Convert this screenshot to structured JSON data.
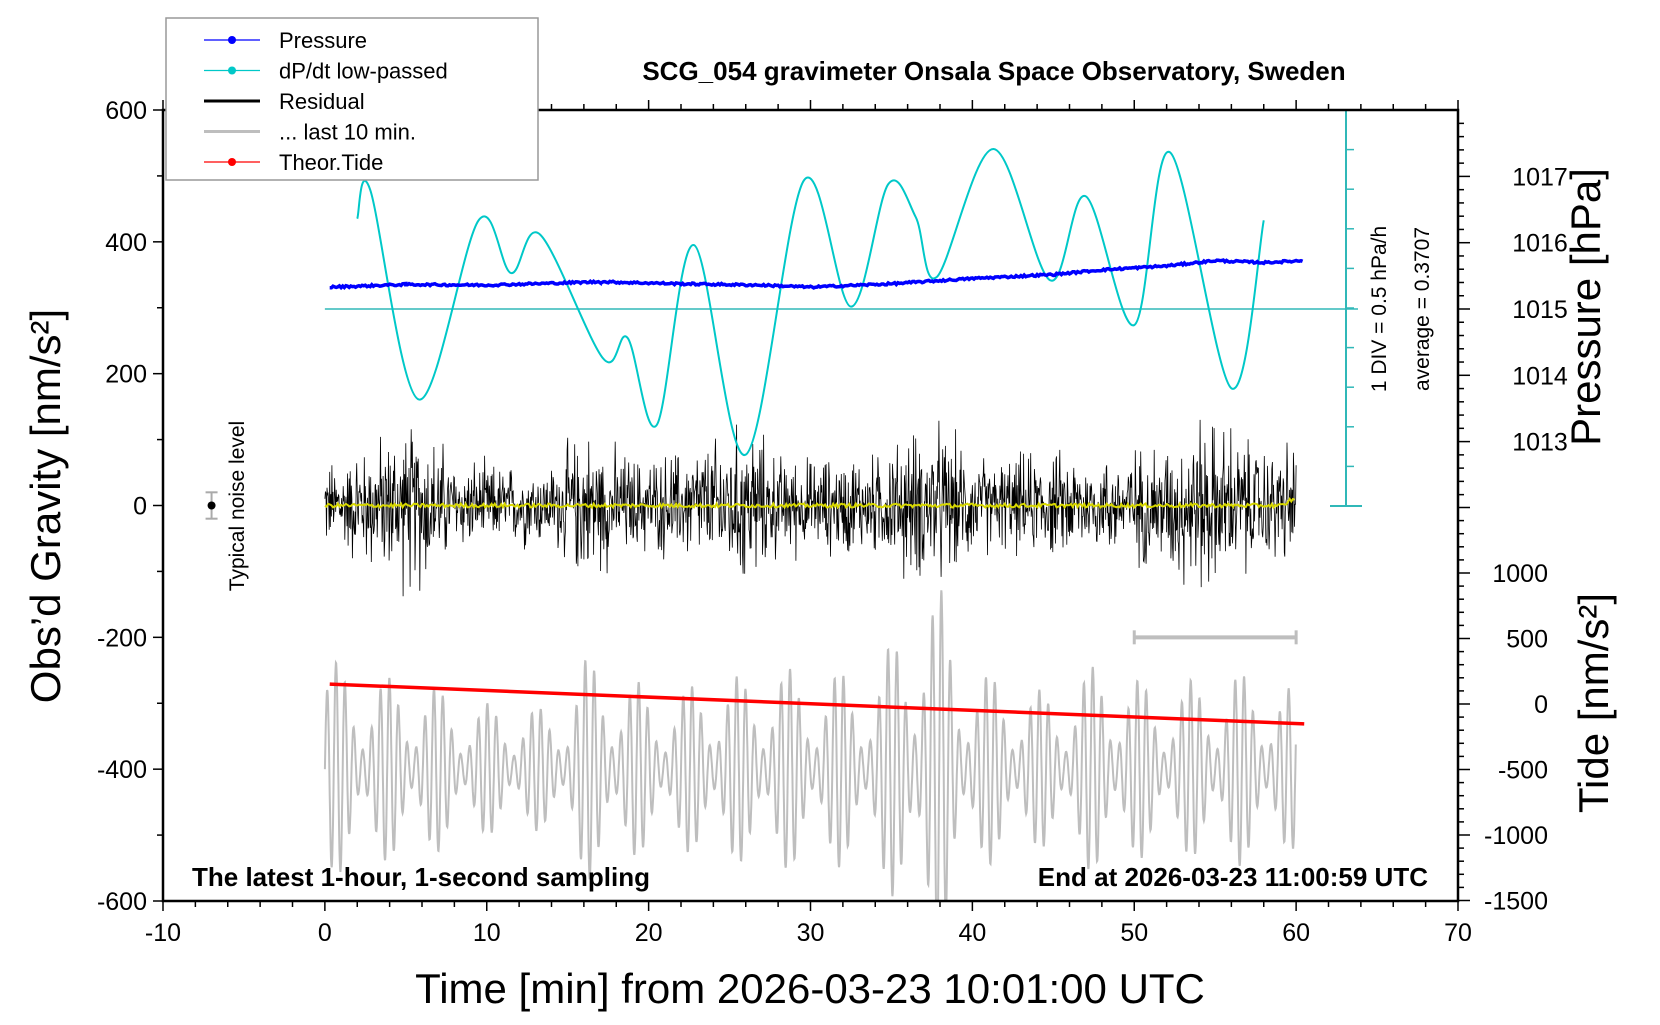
{
  "chart_data": {
    "type": "line",
    "title": "SCG_054 gravimeter Onsala Space Observatory, Sweden",
    "xlabel": "Time [min] from 2026-03-23 10:01:00 UTC",
    "ylabel_left": "Obs’d Gravity [nm/s²]",
    "ylabel_right_top": "Pressure [hPa]",
    "ylabel_right_bottom": "Tide [nm/s²]",
    "xlim": [
      -10,
      70
    ],
    "ylim": [
      -600,
      600
    ],
    "pressure_lim": [
      1015,
      1017
    ],
    "tide_lim": [
      -1500,
      1000
    ],
    "x_ticks": [
      "-10",
      "0",
      "10",
      "20",
      "30",
      "40",
      "50",
      "60",
      "70"
    ],
    "y_ticks": [
      "600",
      "400",
      "200",
      "0",
      "-200",
      "-400",
      "-600"
    ],
    "pressure_ticks": [
      "1017",
      "1016",
      "1015",
      "1014",
      "1013"
    ],
    "tide_ticks": [
      "1000",
      "500",
      "0",
      "-500",
      "-1000",
      "-1500"
    ],
    "note_left": "The latest 1-hour, 1-second sampling",
    "note_right": "End at 2026-03-23 11:00:59 UTC",
    "noise_label": "Typical noise level",
    "noise_level": {
      "x": -7,
      "y": 0,
      "err": 20
    },
    "dpdt_scale_label": "1 DIV = 0.5 hPa/h",
    "dpdt_average_label": "average = 0.3707",
    "dpdt_average": 0.3707,
    "dpdt_div": 0.5,
    "legend": [
      {
        "label": "Pressure",
        "color": "#0000ff",
        "marker": true
      },
      {
        "label": "dP/dt low-passed",
        "color": "#00c8c8",
        "marker": true
      },
      {
        "label": "Residual",
        "color": "#000000",
        "marker": false
      },
      {
        "label": "... last 10 min.",
        "color": "#bebebe",
        "marker": false
      },
      {
        "label": "Theor.Tide",
        "color": "#ff0000",
        "marker": true
      }
    ],
    "series": {
      "pressure": {
        "name": "Pressure",
        "unit": "hPa",
        "x": [
          0.3,
          5,
          10,
          17,
          22,
          27,
          30,
          35,
          40,
          45,
          48,
          52,
          55,
          58,
          60.5
        ],
        "y": [
          1015.33,
          1015.37,
          1015.36,
          1015.41,
          1015.38,
          1015.36,
          1015.33,
          1015.38,
          1015.46,
          1015.52,
          1015.59,
          1015.65,
          1015.73,
          1015.7,
          1015.73
        ]
      },
      "dpdt": {
        "name": "dP/dt low-passed",
        "unit": "hPa/h",
        "x": [
          2,
          2.8,
          5.8,
          9.5,
          11.5,
          13.3,
          17.2,
          18.7,
          20.5,
          22.8,
          26,
          29.6,
          32.5,
          34.8,
          36.5,
          37.8,
          41.3,
          44.8,
          47,
          50,
          52.2,
          56,
          58
        ],
        "y": [
          1.5,
          1.86,
          -0.76,
          1.48,
          0.82,
          1.3,
          -0.25,
          0.01,
          -1.08,
          1.17,
          -1.45,
          1.98,
          0.4,
          1.93,
          1.52,
          0.77,
          2.37,
          0.73,
          1.78,
          0.17,
          2.33,
          -0.62,
          1.48
        ]
      },
      "tide": {
        "name": "Theor.Tide",
        "unit": "nm/s²",
        "x": [
          0.3,
          60.5
        ],
        "y": [
          152,
          -152
        ]
      },
      "residual_envelope": {
        "name": "Residual",
        "unit": "nm/s²",
        "x_step_min": 2,
        "amplitude": [
          80,
          110,
          140,
          170,
          90,
          80,
          80,
          80,
          150,
          110,
          90,
          110,
          130,
          160,
          100,
          90,
          100,
          100,
          140,
          150,
          100,
          90,
          100,
          100,
          90,
          110,
          120,
          170,
          150,
          110,
          120
        ]
      },
      "last10_envelope": {
        "name": "... last 10 min.",
        "unit": "nm/s²",
        "center": -400,
        "x_step_min": 2,
        "amplitude": [
          170,
          150,
          140,
          140,
          110,
          100,
          100,
          90,
          170,
          160,
          120,
          120,
          150,
          140,
          160,
          140,
          150,
          140,
          250,
          280,
          150,
          140,
          120,
          130,
          170,
          140,
          120,
          140,
          150,
          140,
          120
        ]
      },
      "scale_bar": {
        "x": [
          50,
          60
        ],
        "y": -200
      }
    }
  }
}
